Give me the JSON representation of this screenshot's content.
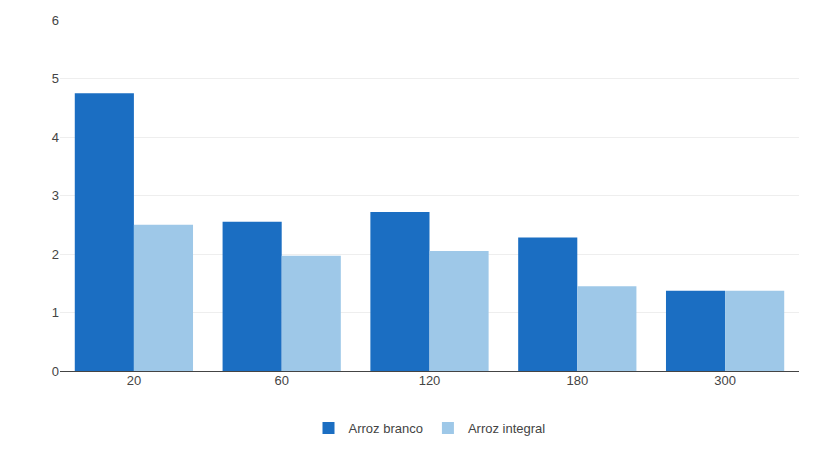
{
  "chart_data": {
    "type": "bar",
    "categories": [
      "20",
      "60",
      "120",
      "180",
      "300"
    ],
    "series": [
      {
        "name": "Arroz branco",
        "color": "#1B6EC2",
        "values": [
          4.75,
          2.55,
          2.72,
          2.28,
          1.37
        ]
      },
      {
        "name": "Arroz integral",
        "color": "#9EC8E8",
        "values": [
          2.5,
          1.97,
          2.05,
          1.45,
          1.37
        ]
      }
    ],
    "ylim": [
      0,
      6
    ],
    "yticks": [
      0,
      1,
      2,
      3,
      4,
      5,
      6
    ],
    "grid": true,
    "legend": "bottom"
  }
}
